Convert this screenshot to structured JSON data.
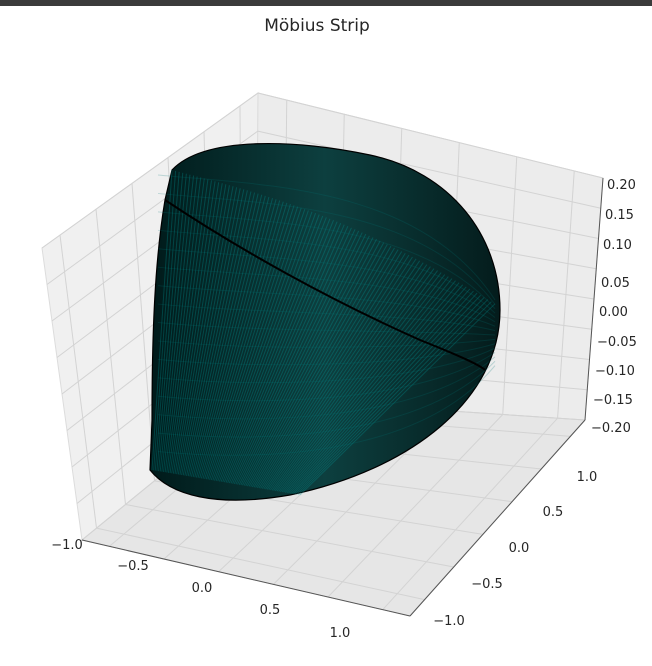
{
  "chart_data": {
    "type": "surface3d",
    "title": "Möbius Strip",
    "xlabel": "",
    "ylabel": "",
    "zlabel": "",
    "xlim": [
      -1.25,
      1.25
    ],
    "ylim": [
      -1.25,
      1.25
    ],
    "zlim": [
      -0.2,
      0.2
    ],
    "x_ticks": [
      "−1.0",
      "−0.5",
      "0.0",
      "0.5",
      "1.0"
    ],
    "y_ticks": [
      "−1.0",
      "−0.5",
      "0.0",
      "0.5",
      "1.0"
    ],
    "z_ticks": [
      "−0.20",
      "−0.15",
      "−0.10",
      "−0.05",
      "0.00",
      "0.05",
      "0.10",
      "0.15",
      "0.20"
    ],
    "surface": {
      "equation": "x=(1+v/2*cos(u/2))cos(u), y=(1+v/2*cos(u/2))sin(u), z=v/2*sin(u/2)",
      "u_range": [
        0,
        6.2832
      ],
      "v_range": [
        -0.5,
        0.5
      ],
      "face_color": "#00ffff",
      "edge_color": "#000000",
      "alpha": 0.6
    },
    "grid": true,
    "pane_color": "#f2f2f2"
  }
}
